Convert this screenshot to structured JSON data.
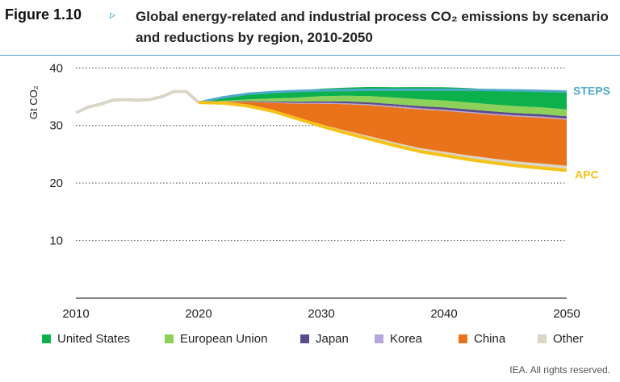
{
  "header": {
    "figure_label": "Figure 1.10",
    "arrow_glyph": "▹",
    "title": "Global energy-related and industrial process CO₂ emissions by scenario and reductions by region, 2010-2050"
  },
  "footer": {
    "credit": "IEA. All rights reserved."
  },
  "colors": {
    "accent_rule": "#4f9dc8",
    "united_states": "#0db14b",
    "european_union": "#8dd05a",
    "japan": "#5c4b8a",
    "korea": "#b7a6d9",
    "china": "#e8731b",
    "other": "#d9d6c8",
    "steps": "#4eaac9",
    "apc": "#f6c21a",
    "history": "#d9d6c8"
  },
  "chart_data": {
    "type": "area",
    "title": "Global energy-related and industrial process CO₂ emissions by scenario and reductions by region, 2010-2050",
    "ylabel": "Gt CO₂",
    "xlabel": "",
    "xlim": [
      2010,
      2050
    ],
    "ylim": [
      0,
      42
    ],
    "xticks": [
      2010,
      2020,
      2030,
      2040,
      2050
    ],
    "yticks": [
      10,
      20,
      30,
      40
    ],
    "grid": "horizontal dotted",
    "legend_position": "bottom",
    "history": {
      "x": [
        2010,
        2011,
        2012,
        2013,
        2014,
        2015,
        2016,
        2017,
        2018,
        2019,
        2020
      ],
      "values": [
        32.2,
        33.2,
        33.7,
        34.4,
        34.5,
        34.4,
        34.5,
        35.0,
        35.9,
        35.9,
        34.0
      ]
    },
    "x": [
      2020,
      2022,
      2024,
      2026,
      2028,
      2030,
      2032,
      2034,
      2036,
      2038,
      2040,
      2042,
      2044,
      2046,
      2048,
      2050
    ],
    "scenarios": [
      {
        "name": "STEPS",
        "values": [
          34.0,
          34.9,
          35.5,
          35.8,
          36.0,
          36.1,
          36.15,
          36.2,
          36.2,
          36.2,
          36.2,
          36.2,
          36.15,
          36.1,
          36.0,
          35.9
        ]
      },
      {
        "name": "APC",
        "values": [
          34.0,
          33.9,
          33.4,
          32.5,
          31.2,
          29.9,
          28.7,
          27.6,
          26.5,
          25.5,
          24.8,
          24.1,
          23.5,
          23.0,
          22.6,
          22.2
        ]
      }
    ],
    "series": [
      {
        "name": "Other",
        "values": [
          0,
          0.05,
          0.1,
          0.15,
          0.2,
          0.3,
          0.4,
          0.5,
          0.55,
          0.6,
          0.65,
          0.7,
          0.75,
          0.75,
          0.8,
          0.8
        ]
      },
      {
        "name": "China",
        "values": [
          0,
          0.2,
          0.6,
          1.3,
          2.4,
          3.6,
          4.6,
          5.4,
          6.1,
          6.7,
          7.1,
          7.4,
          7.6,
          7.8,
          7.95,
          8.0
        ]
      },
      {
        "name": "Korea",
        "values": [
          0,
          0.02,
          0.05,
          0.1,
          0.12,
          0.15,
          0.17,
          0.18,
          0.2,
          0.2,
          0.2,
          0.2,
          0.2,
          0.2,
          0.2,
          0.2
        ]
      },
      {
        "name": "Japan",
        "values": [
          0,
          0.03,
          0.08,
          0.15,
          0.2,
          0.25,
          0.3,
          0.32,
          0.35,
          0.37,
          0.4,
          0.4,
          0.4,
          0.4,
          0.4,
          0.4
        ]
      },
      {
        "name": "European Union",
        "values": [
          0,
          0.1,
          0.3,
          0.5,
          0.7,
          0.9,
          1.0,
          1.1,
          1.15,
          1.2,
          1.2,
          1.2,
          1.2,
          1.2,
          1.2,
          1.2
        ]
      },
      {
        "name": "United States",
        "values": [
          0,
          0.6,
          1.0,
          1.1,
          1.2,
          1.3,
          1.4,
          1.6,
          1.8,
          2.1,
          2.3,
          2.5,
          2.6,
          2.7,
          2.8,
          3.0
        ]
      }
    ],
    "legend": [
      {
        "name": "United States",
        "color": "#0db14b"
      },
      {
        "name": "European Union",
        "color": "#8dd05a"
      },
      {
        "name": "Japan",
        "color": "#5c4b8a"
      },
      {
        "name": "Korea",
        "color": "#b7a6d9"
      },
      {
        "name": "China",
        "color": "#e8731b"
      },
      {
        "name": "Other",
        "color": "#d9d6c8"
      }
    ],
    "annotations": [
      {
        "text": "STEPS",
        "color": "#4eaac9"
      },
      {
        "text": "APC",
        "color": "#f6c21a"
      }
    ]
  }
}
